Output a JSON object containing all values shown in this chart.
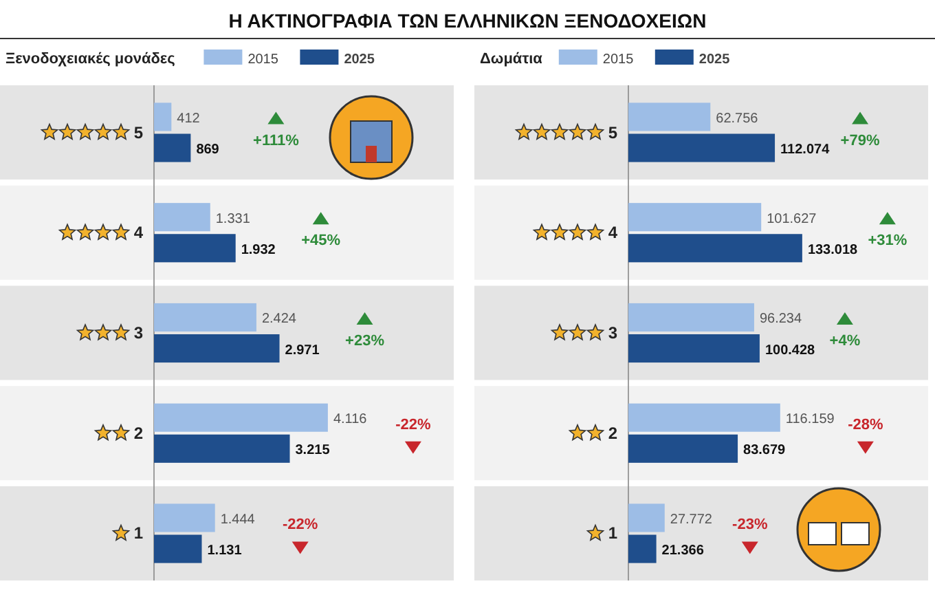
{
  "chart_data": [
    {
      "type": "bar",
      "orientation": "horizontal",
      "title": "Η ΑΚΤΙΝΟΓΡΑΦΙΑ ΤΩΝ ΕΛΛΗΝΙΚΩΝ ΞΕΝΟΔΟΧΕΙΩΝ",
      "legend_title": "Ξενοδοχειακές μονάδες",
      "categories": [
        "5",
        "4",
        "3",
        "2",
        "1"
      ],
      "series": [
        {
          "name": "2015",
          "color": "#9dbde6",
          "values": [
            412,
            1331,
            2424,
            4116,
            1444
          ],
          "value_labels": [
            "412",
            "1.331",
            "2.424",
            "4.116",
            "1.444"
          ]
        },
        {
          "name": "2025",
          "color": "#1f4e8c",
          "values": [
            869,
            1932,
            2971,
            3215,
            1131
          ],
          "value_labels": [
            "869",
            "1.932",
            "2.971",
            "3.215",
            "1.131"
          ]
        }
      ],
      "legend": "top",
      "tick_labels": "y",
      "annotations": [
        "+111%",
        "+45%",
        "+23%",
        "-22%",
        "-22%"
      ]
    },
    {
      "type": "bar",
      "orientation": "horizontal",
      "legend_title": "Δωμάτια",
      "categories": [
        "5",
        "4",
        "3",
        "2",
        "1"
      ],
      "series": [
        {
          "name": "2015",
          "color": "#9dbde6",
          "values": [
            62756,
            101627,
            96234,
            116159,
            27772
          ],
          "value_labels": [
            "62.756",
            "101.627",
            "96.234",
            "116.159",
            "27.772"
          ]
        },
        {
          "name": "2025",
          "color": "#1f4e8c",
          "values": [
            112074,
            133018,
            100428,
            83679,
            21366
          ],
          "value_labels": [
            "112.074",
            "133.018",
            "100.428",
            "83.679",
            "21.366"
          ]
        }
      ],
      "legend": "top",
      "tick_labels": "y",
      "annotations": [
        "+79%",
        "+31%",
        "+4%",
        "-28%",
        "-23%"
      ]
    }
  ]
}
